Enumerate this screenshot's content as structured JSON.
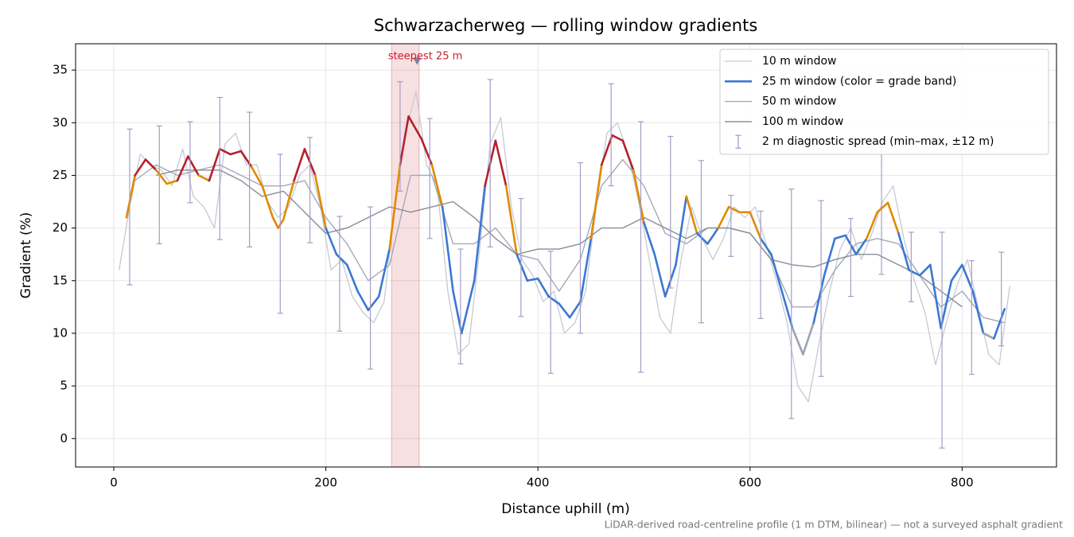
{
  "chart_data": {
    "type": "line",
    "title": "Schwarzacherweg — rolling window gradients",
    "xlabel": "Distance uphill (m)",
    "ylabel": "Gradient (%)",
    "footnote": "LiDAR-derived road-centreline profile (1 m DTM, bilinear) — not a surveyed asphalt gradient",
    "xlim": [
      -36,
      889
    ],
    "ylim": [
      -2.7,
      37.5
    ],
    "xticks": [
      0,
      200,
      400,
      600,
      800
    ],
    "yticks": [
      0,
      5,
      10,
      15,
      20,
      25,
      30,
      35
    ],
    "grid": true,
    "legend": "upper right",
    "series": [
      {
        "name": "10 m window",
        "color": "#c5cad4",
        "width": 1.3,
        "x": [
          5,
          15,
          25,
          35,
          45,
          55,
          65,
          75,
          85,
          95,
          105,
          115,
          125,
          135,
          145,
          155,
          165,
          175,
          185,
          195,
          205,
          215,
          225,
          235,
          245,
          255,
          265,
          275,
          285,
          295,
          305,
          315,
          325,
          335,
          345,
          355,
          365,
          375,
          385,
          395,
          405,
          415,
          425,
          435,
          445,
          455,
          465,
          475,
          485,
          495,
          505,
          515,
          525,
          535,
          545,
          555,
          565,
          575,
          585,
          595,
          605,
          615,
          625,
          635,
          645,
          655,
          665,
          675,
          685,
          695,
          705,
          715,
          725,
          735,
          745,
          755,
          765,
          775,
          785,
          795,
          805,
          815,
          825,
          835,
          845
        ],
        "values": [
          16,
          22,
          27,
          26,
          25.5,
          24,
          27.5,
          23,
          22,
          20,
          28,
          29,
          26,
          26,
          22.5,
          21,
          22,
          25,
          26,
          22,
          16,
          17,
          13.5,
          12,
          11,
          13,
          22,
          29,
          33,
          26,
          24,
          14,
          8,
          9,
          18,
          28,
          30.5,
          22,
          17,
          15.5,
          13,
          14,
          10,
          11,
          14,
          22,
          29,
          30,
          27,
          22.5,
          17,
          11.5,
          10,
          17,
          22,
          19,
          17,
          19,
          22,
          21,
          22,
          18.5,
          15,
          11,
          5,
          3.5,
          9,
          14,
          18,
          20,
          17,
          19.5,
          22.5,
          24,
          19,
          15,
          12,
          7,
          11,
          14.5,
          17,
          12.5,
          8,
          7,
          14.5
        ]
      },
      {
        "name": "25 m window (color = grade band)",
        "color": "#3a78d4",
        "width": 2.6,
        "band_edges": [
          10,
          20,
          25
        ],
        "band_colors": [
          "#98a4b0",
          "#3a78d4",
          "#e08a00",
          "#b5202e"
        ],
        "x": [
          12,
          20,
          30,
          40,
          50,
          60,
          70,
          80,
          90,
          100,
          110,
          120,
          130,
          140,
          150,
          155,
          160,
          170,
          180,
          190,
          200,
          210,
          220,
          230,
          240,
          250,
          260,
          270,
          278,
          290,
          300,
          310,
          320,
          328,
          340,
          350,
          360,
          370,
          380,
          390,
          400,
          410,
          420,
          430,
          440,
          450,
          460,
          470,
          480,
          490,
          500,
          510,
          520,
          530,
          540,
          550,
          560,
          570,
          580,
          590,
          600,
          610,
          620,
          630,
          640,
          650,
          660,
          670,
          680,
          690,
          700,
          710,
          720,
          730,
          740,
          750,
          760,
          770,
          780,
          790,
          800,
          810,
          820,
          830,
          840
        ],
        "values": [
          21,
          25,
          26.5,
          25.5,
          24.2,
          24.5,
          26.8,
          25,
          24.5,
          27.5,
          27,
          27.3,
          25.8,
          24,
          21,
          20,
          20.8,
          24.5,
          27.5,
          25,
          20,
          17.5,
          16.5,
          14,
          12.2,
          13.5,
          18,
          26,
          30.6,
          28.5,
          26,
          22,
          14,
          10,
          15,
          24,
          28.3,
          24,
          17.5,
          15,
          15.2,
          13.5,
          12.8,
          11.5,
          13,
          19,
          26,
          28.8,
          28.3,
          25.5,
          20.5,
          17.5,
          13.5,
          16.5,
          23,
          19.5,
          18.5,
          20,
          22,
          21.5,
          21.5,
          19,
          17.5,
          14,
          10.5,
          8,
          11,
          15.5,
          19,
          19.3,
          17.5,
          19,
          21.5,
          22.4,
          19.5,
          16,
          15.5,
          16.5,
          10.5,
          15,
          16.5,
          14,
          10,
          9.5,
          12.3
        ]
      },
      {
        "name": "50 m window",
        "color": "#a2a9b8",
        "width": 1.4,
        "x": [
          20,
          40,
          60,
          80,
          100,
          120,
          140,
          160,
          180,
          200,
          220,
          240,
          260,
          280,
          300,
          320,
          340,
          360,
          380,
          400,
          420,
          440,
          460,
          480,
          500,
          520,
          540,
          560,
          580,
          600,
          620,
          640,
          660,
          680,
          700,
          720,
          740,
          760,
          780,
          800,
          820,
          840
        ],
        "values": [
          24.5,
          26,
          25,
          25.5,
          26,
          25,
          24,
          24,
          24.5,
          21,
          18.5,
          15,
          16.5,
          25,
          25,
          18.5,
          18.5,
          20,
          17.5,
          17,
          14,
          17,
          24,
          26.5,
          24,
          19.5,
          18.5,
          20,
          20,
          19.5,
          17,
          12.5,
          12.5,
          16,
          18.5,
          19,
          18.5,
          15.5,
          12.5,
          14,
          11.5,
          11
        ]
      },
      {
        "name": "100 m window",
        "color": "#868c9a",
        "width": 1.4,
        "x": [
          40,
          60,
          80,
          100,
          120,
          140,
          160,
          180,
          200,
          220,
          240,
          260,
          280,
          300,
          320,
          340,
          360,
          380,
          400,
          420,
          440,
          460,
          480,
          500,
          520,
          540,
          560,
          580,
          600,
          620,
          640,
          660,
          680,
          700,
          720,
          740,
          760,
          780,
          800
        ],
        "values": [
          25,
          25.5,
          25.5,
          25.5,
          24.5,
          23,
          23.5,
          21.5,
          19.5,
          20,
          21,
          22,
          21.5,
          22,
          22.5,
          21,
          19,
          17.5,
          18,
          18,
          18.5,
          20,
          20,
          21,
          20,
          19,
          20,
          20,
          19.5,
          17,
          16.5,
          16.3,
          17,
          17.5,
          17.5,
          16.5,
          15.5,
          14,
          12.5
        ]
      }
    ],
    "error_bars": {
      "name": "2 m diagnostic spread (min–max, ±12 m)",
      "color": "#a69cc6",
      "x": [
        15,
        43,
        72,
        100,
        128,
        157,
        185,
        213,
        242,
        270,
        298,
        327,
        355,
        384,
        412,
        440,
        469,
        497,
        525,
        554,
        582,
        610,
        639,
        667,
        695,
        724,
        752,
        781,
        809,
        837
      ],
      "low": [
        14.6,
        18.5,
        22.4,
        18.9,
        18.2,
        11.9,
        18.6,
        10.2,
        6.6,
        23.5,
        19,
        7.1,
        18.2,
        11.6,
        6.2,
        10,
        24,
        6.3,
        14.3,
        11,
        17.3,
        11.4,
        1.9,
        5.9,
        13.5,
        15.6,
        13,
        -0.9,
        6.1,
        8.8
      ],
      "high": [
        29.4,
        29.7,
        30.1,
        32.4,
        31,
        27,
        28.6,
        21.1,
        22,
        33.9,
        30.4,
        18,
        34.1,
        22.8,
        17.8,
        26.2,
        33.7,
        30.1,
        28.7,
        26.4,
        23.1,
        21.6,
        23.7,
        22.6,
        20.9,
        27.7,
        19.6,
        19.6,
        16.9,
        17.7
      ]
    },
    "highlight": {
      "label": "steepest 25 m",
      "color": "#c8202e",
      "xmin": 262,
      "xmax": 288,
      "marker_x": 286,
      "marker_y": 35.8
    }
  }
}
